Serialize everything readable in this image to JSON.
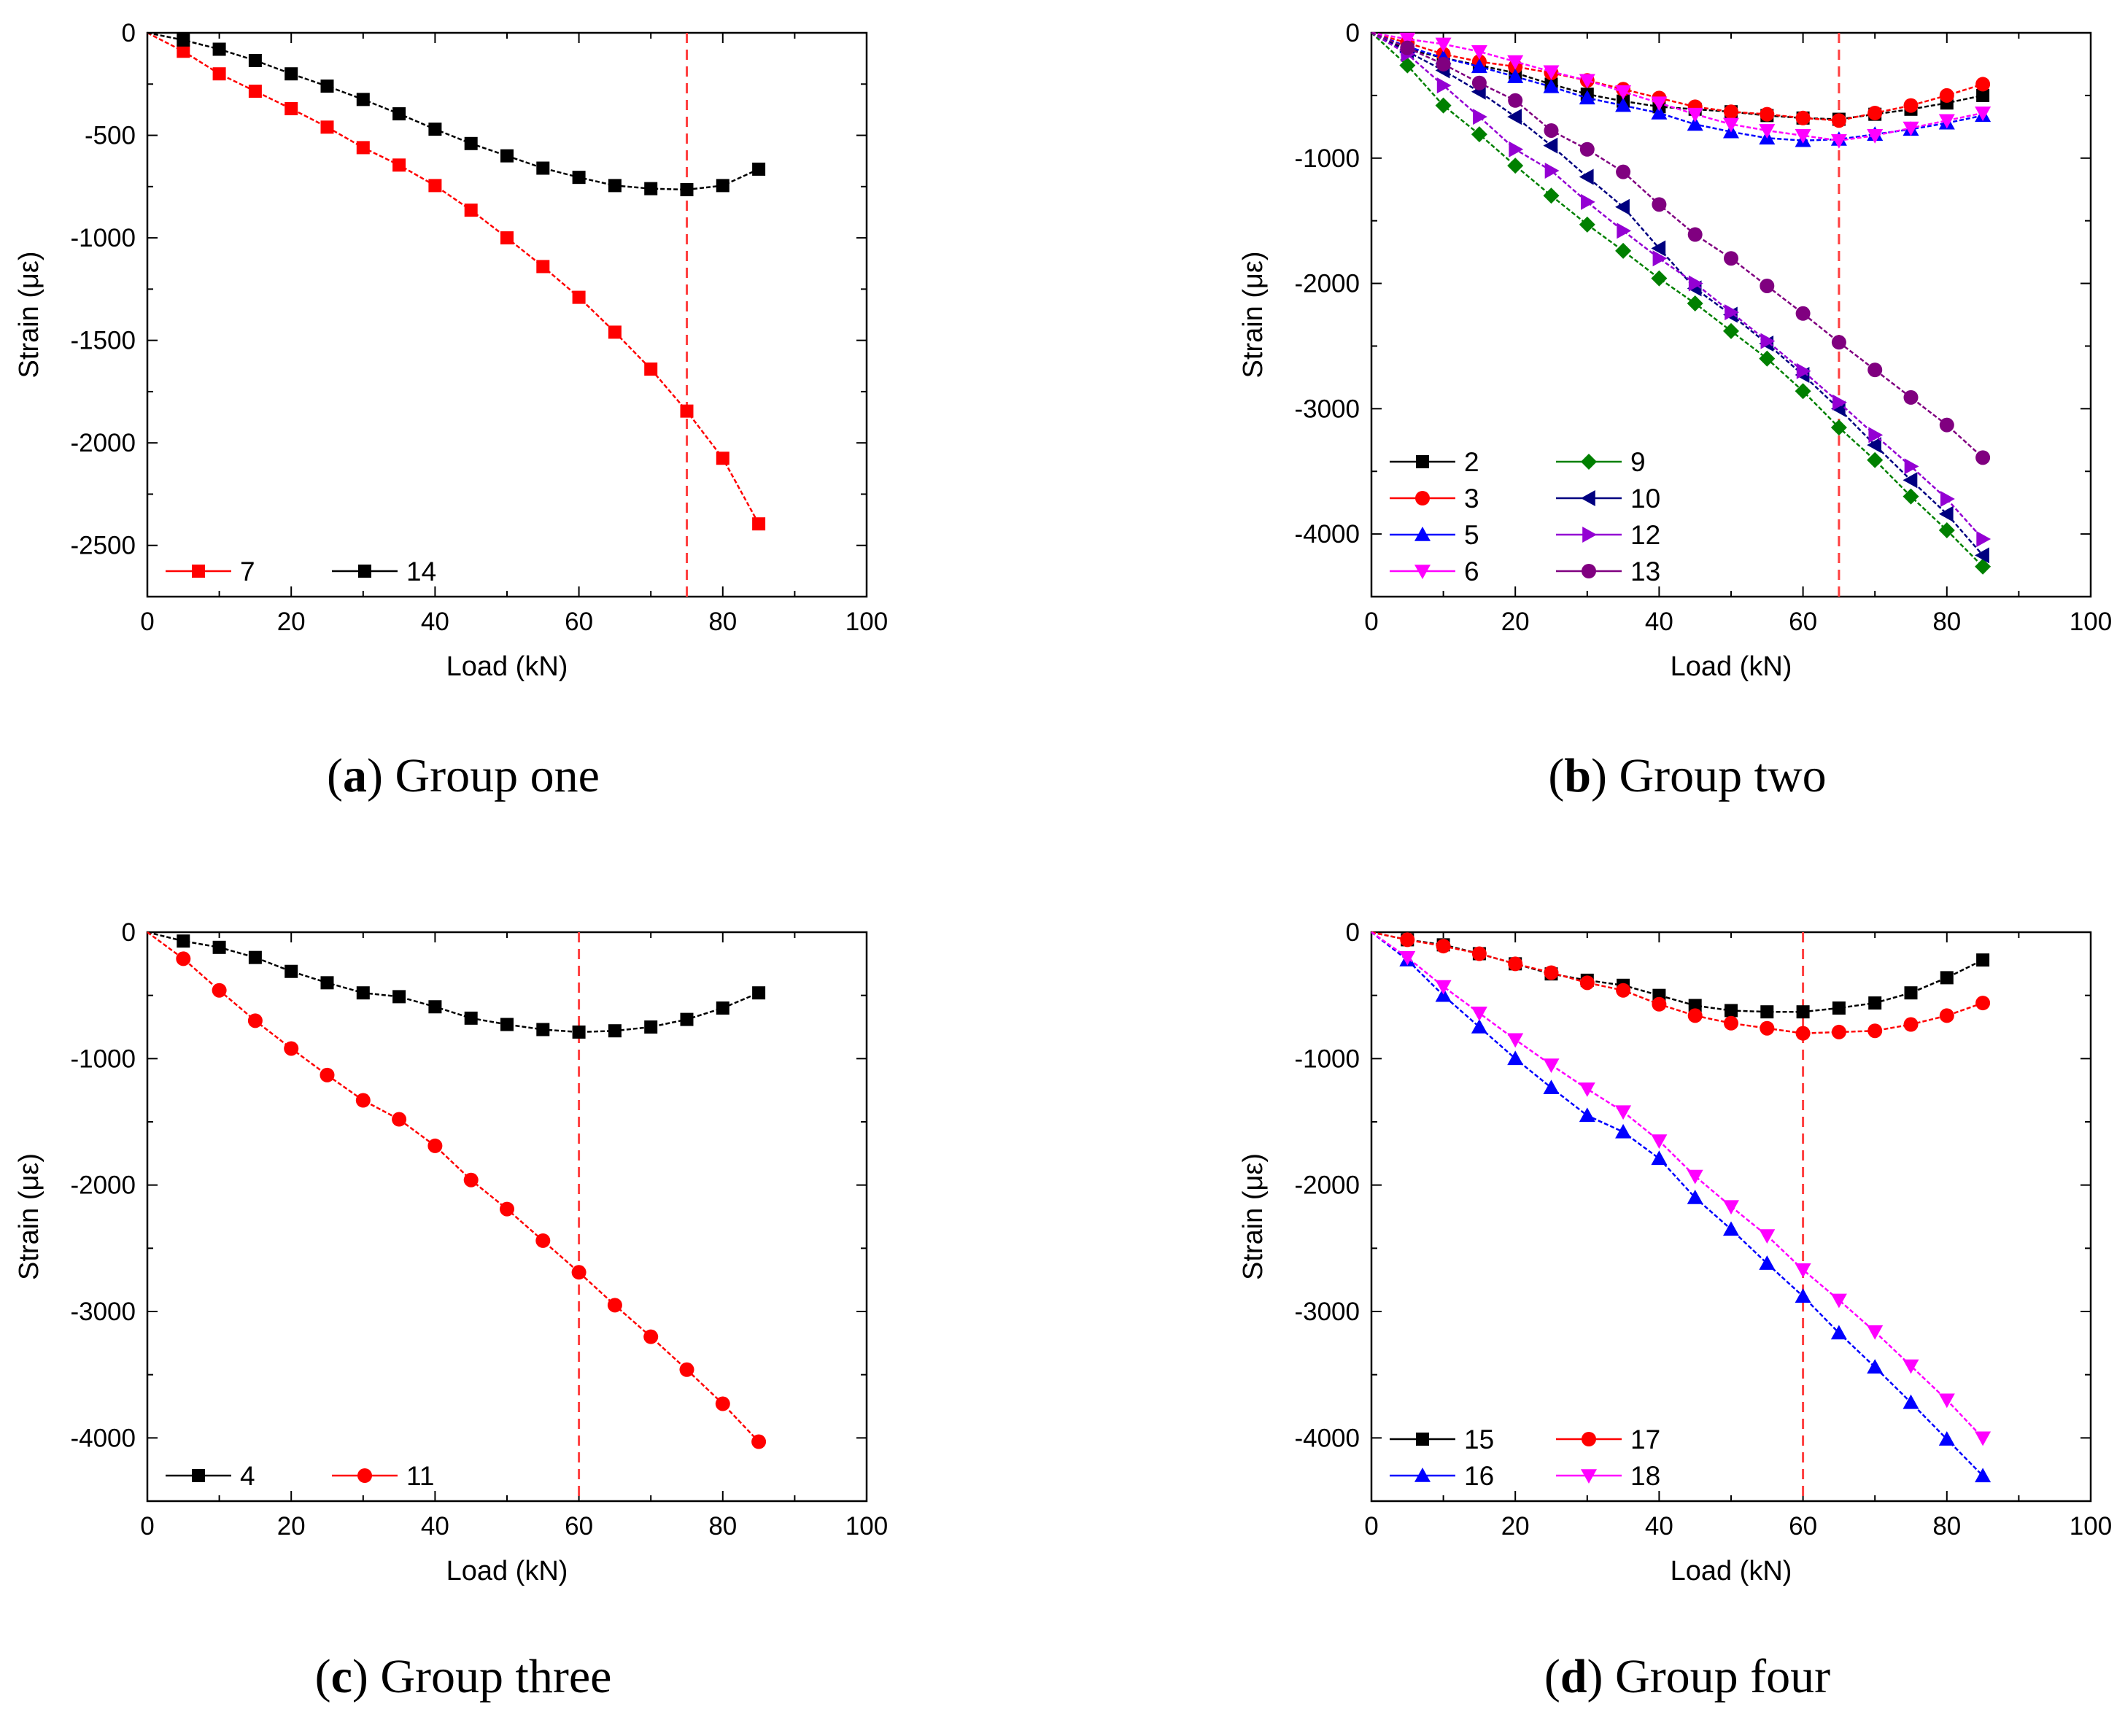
{
  "chart_data": [
    {
      "type": "line",
      "panel_letter": "a",
      "caption_text": "Group one",
      "xlabel": "Load (kN)",
      "ylabel": "Strain (με)",
      "xlim": [
        0,
        100
      ],
      "ylim": [
        -2750,
        0
      ],
      "xticks": [
        0,
        20,
        40,
        60,
        80,
        100
      ],
      "xtick_labels": [
        "0",
        "20",
        "40",
        "60",
        "80",
        "100"
      ],
      "yticks": [
        0,
        -500,
        -1000,
        -1500,
        -2000,
        -2500
      ],
      "ytick_labels": [
        "0",
        "-500",
        "-1000",
        "-1500",
        "-2000",
        "-2500"
      ],
      "reference_line_x": 75,
      "legend_position": "bottom-left",
      "legend_columns": 2,
      "series": [
        {
          "name": "7",
          "color": "#ff0000",
          "marker": "square",
          "x": [
            0,
            5,
            10,
            15,
            20,
            25,
            30,
            35,
            40,
            45,
            50,
            55,
            60,
            65,
            70,
            75,
            80,
            85
          ],
          "values": [
            0,
            -90,
            -200,
            -285,
            -370,
            -460,
            -560,
            -645,
            -745,
            -865,
            -1000,
            -1140,
            -1290,
            -1460,
            -1640,
            -1845,
            -2075,
            -2395
          ]
        },
        {
          "name": "14",
          "color": "#000000",
          "marker": "square",
          "x": [
            0,
            5,
            10,
            15,
            20,
            25,
            30,
            35,
            40,
            45,
            50,
            55,
            60,
            65,
            70,
            75,
            80,
            85
          ],
          "values": [
            0,
            -35,
            -80,
            -135,
            -200,
            -260,
            -325,
            -395,
            -470,
            -540,
            -600,
            -660,
            -705,
            -745,
            -760,
            -765,
            -745,
            -665
          ]
        }
      ]
    },
    {
      "type": "line",
      "panel_letter": "b",
      "caption_text": "Group two",
      "xlabel": "Load (kN)",
      "ylabel": "Strain (με)",
      "xlim": [
        0,
        100
      ],
      "ylim": [
        -4500,
        0
      ],
      "xticks": [
        0,
        20,
        40,
        60,
        80,
        100
      ],
      "xtick_labels": [
        "0",
        "20",
        "40",
        "60",
        "80",
        "100"
      ],
      "yticks": [
        0,
        -1000,
        -2000,
        -3000,
        -4000
      ],
      "ytick_labels": [
        "0",
        "-1000",
        "-2000",
        "-3000",
        "-4000"
      ],
      "reference_line_x": 65,
      "legend_position": "bottom-left",
      "legend_columns": 2,
      "series": [
        {
          "name": "2",
          "color": "#000000",
          "marker": "square",
          "x": [
            0,
            5,
            10,
            15,
            20,
            25,
            30,
            35,
            40,
            45,
            50,
            55,
            60,
            65,
            70,
            75,
            80,
            85
          ],
          "values": [
            0,
            -130,
            -200,
            -260,
            -320,
            -410,
            -490,
            -545,
            -590,
            -610,
            -630,
            -660,
            -680,
            -690,
            -650,
            -610,
            -560,
            -500
          ]
        },
        {
          "name": "3",
          "color": "#ff0000",
          "marker": "circle",
          "x": [
            0,
            5,
            10,
            15,
            20,
            25,
            30,
            35,
            40,
            45,
            50,
            55,
            60,
            65,
            70,
            75,
            80,
            85
          ],
          "values": [
            0,
            -80,
            -170,
            -230,
            -270,
            -320,
            -380,
            -450,
            -520,
            -590,
            -630,
            -650,
            -680,
            -700,
            -640,
            -580,
            -500,
            -410
          ]
        },
        {
          "name": "5",
          "color": "#0000ff",
          "marker": "triangle-up",
          "x": [
            0,
            5,
            10,
            15,
            20,
            25,
            30,
            35,
            40,
            45,
            50,
            55,
            60,
            65,
            70,
            75,
            80,
            85
          ],
          "values": [
            0,
            -110,
            -200,
            -270,
            -350,
            -430,
            -520,
            -580,
            -640,
            -730,
            -790,
            -840,
            -860,
            -850,
            -810,
            -770,
            -720,
            -660
          ]
        },
        {
          "name": "6",
          "color": "#ff00ff",
          "marker": "triangle-down",
          "x": [
            0,
            5,
            10,
            15,
            20,
            25,
            30,
            35,
            40,
            45,
            50,
            55,
            60,
            65,
            70,
            75,
            80,
            85
          ],
          "values": [
            0,
            -50,
            -90,
            -150,
            -230,
            -310,
            -380,
            -470,
            -560,
            -650,
            -730,
            -780,
            -820,
            -860,
            -820,
            -760,
            -700,
            -640
          ]
        },
        {
          "name": "9",
          "color": "#008000",
          "marker": "diamond",
          "x": [
            0,
            5,
            10,
            15,
            20,
            25,
            30,
            35,
            40,
            45,
            50,
            55,
            60,
            65,
            70,
            75,
            80,
            85
          ],
          "values": [
            0,
            -260,
            -580,
            -810,
            -1060,
            -1300,
            -1530,
            -1740,
            -1960,
            -2160,
            -2380,
            -2600,
            -2860,
            -3150,
            -3410,
            -3700,
            -3970,
            -4260
          ]
        },
        {
          "name": "10",
          "color": "#000080",
          "marker": "triangle-left",
          "x": [
            0,
            5,
            10,
            15,
            20,
            25,
            30,
            35,
            40,
            45,
            50,
            55,
            60,
            65,
            70,
            75,
            80,
            85
          ],
          "values": [
            0,
            -150,
            -300,
            -470,
            -670,
            -900,
            -1150,
            -1390,
            -1720,
            -2040,
            -2250,
            -2480,
            -2730,
            -3000,
            -3290,
            -3570,
            -3840,
            -4170
          ]
        },
        {
          "name": "12",
          "color": "#9400d3",
          "marker": "triangle-right",
          "x": [
            0,
            5,
            10,
            15,
            20,
            25,
            30,
            35,
            40,
            45,
            50,
            55,
            60,
            65,
            70,
            75,
            80,
            85
          ],
          "values": [
            0,
            -170,
            -420,
            -670,
            -930,
            -1100,
            -1350,
            -1580,
            -1800,
            -2000,
            -2230,
            -2460,
            -2700,
            -2950,
            -3210,
            -3460,
            -3720,
            -4040
          ]
        },
        {
          "name": "13",
          "color": "#800080",
          "marker": "circle",
          "x": [
            0,
            5,
            10,
            15,
            20,
            25,
            30,
            35,
            40,
            45,
            50,
            55,
            60,
            65,
            70,
            75,
            80,
            85
          ],
          "values": [
            0,
            -120,
            -250,
            -400,
            -540,
            -780,
            -930,
            -1110,
            -1370,
            -1610,
            -1800,
            -2020,
            -2240,
            -2470,
            -2690,
            -2910,
            -3130,
            -3390
          ]
        }
      ]
    },
    {
      "type": "line",
      "panel_letter": "c",
      "caption_text": "Group three",
      "xlabel": "Load (kN)",
      "ylabel": "Strain (με)",
      "xlim": [
        0,
        100
      ],
      "ylim": [
        -4500,
        0
      ],
      "xticks": [
        0,
        20,
        40,
        60,
        80,
        100
      ],
      "xtick_labels": [
        "0",
        "20",
        "40",
        "60",
        "80",
        "100"
      ],
      "yticks": [
        0,
        -1000,
        -2000,
        -3000,
        -4000
      ],
      "ytick_labels": [
        "0",
        "-1000",
        "-2000",
        "-3000",
        "-4000"
      ],
      "reference_line_x": 60,
      "legend_position": "bottom-left",
      "legend_columns": 2,
      "series": [
        {
          "name": "4",
          "color": "#000000",
          "marker": "square",
          "x": [
            0,
            5,
            10,
            15,
            20,
            25,
            30,
            35,
            40,
            45,
            50,
            55,
            60,
            65,
            70,
            75,
            80,
            85
          ],
          "values": [
            0,
            -70,
            -120,
            -200,
            -310,
            -400,
            -480,
            -510,
            -590,
            -680,
            -730,
            -770,
            -790,
            -780,
            -750,
            -690,
            -600,
            -480
          ]
        },
        {
          "name": "11",
          "color": "#ff0000",
          "marker": "circle",
          "x": [
            0,
            5,
            10,
            15,
            20,
            25,
            30,
            35,
            40,
            45,
            50,
            55,
            60,
            65,
            70,
            75,
            80,
            85
          ],
          "values": [
            0,
            -210,
            -460,
            -700,
            -920,
            -1130,
            -1330,
            -1480,
            -1690,
            -1960,
            -2190,
            -2440,
            -2690,
            -2950,
            -3200,
            -3460,
            -3730,
            -4030
          ]
        }
      ]
    },
    {
      "type": "line",
      "panel_letter": "d",
      "caption_text": "Group four",
      "xlabel": "Load (kN)",
      "ylabel": "Strain (με)",
      "xlim": [
        0,
        100
      ],
      "ylim": [
        -4500,
        0
      ],
      "xticks": [
        0,
        20,
        40,
        60,
        80,
        100
      ],
      "xtick_labels": [
        "0",
        "20",
        "40",
        "60",
        "80",
        "100"
      ],
      "yticks": [
        0,
        -1000,
        -2000,
        -3000,
        -4000
      ],
      "ytick_labels": [
        "0",
        "-1000",
        "-2000",
        "-3000",
        "-4000"
      ],
      "reference_line_x": 60,
      "legend_position": "bottom-left",
      "legend_columns": 2,
      "series": [
        {
          "name": "15",
          "color": "#000000",
          "marker": "square",
          "x": [
            0,
            5,
            10,
            15,
            20,
            25,
            30,
            35,
            40,
            45,
            50,
            55,
            60,
            65,
            70,
            75,
            80,
            85
          ],
          "values": [
            0,
            -60,
            -100,
            -170,
            -250,
            -330,
            -380,
            -420,
            -500,
            -580,
            -620,
            -630,
            -630,
            -600,
            -560,
            -480,
            -360,
            -220
          ]
        },
        {
          "name": "16",
          "color": "#0000ff",
          "marker": "triangle-up",
          "x": [
            0,
            5,
            10,
            15,
            20,
            25,
            30,
            35,
            40,
            45,
            50,
            55,
            60,
            65,
            70,
            75,
            80,
            85
          ],
          "values": [
            0,
            -220,
            -500,
            -750,
            -1000,
            -1230,
            -1450,
            -1580,
            -1790,
            -2100,
            -2350,
            -2620,
            -2880,
            -3170,
            -3440,
            -3720,
            -4010,
            -4300
          ]
        },
        {
          "name": "17",
          "color": "#ff0000",
          "marker": "circle",
          "x": [
            0,
            5,
            10,
            15,
            20,
            25,
            30,
            35,
            40,
            45,
            50,
            55,
            60,
            65,
            70,
            75,
            80,
            85
          ],
          "values": [
            0,
            -60,
            -110,
            -170,
            -250,
            -320,
            -400,
            -460,
            -570,
            -660,
            -720,
            -760,
            -800,
            -790,
            -780,
            -730,
            -660,
            -560
          ]
        },
        {
          "name": "18",
          "color": "#ff00ff",
          "marker": "triangle-down",
          "x": [
            0,
            5,
            10,
            15,
            20,
            25,
            30,
            35,
            40,
            45,
            50,
            55,
            60,
            65,
            70,
            75,
            80,
            85
          ],
          "values": [
            0,
            -200,
            -430,
            -640,
            -850,
            -1050,
            -1240,
            -1420,
            -1650,
            -1930,
            -2170,
            -2400,
            -2670,
            -2910,
            -3160,
            -3430,
            -3700,
            -4000
          ]
        }
      ]
    }
  ]
}
